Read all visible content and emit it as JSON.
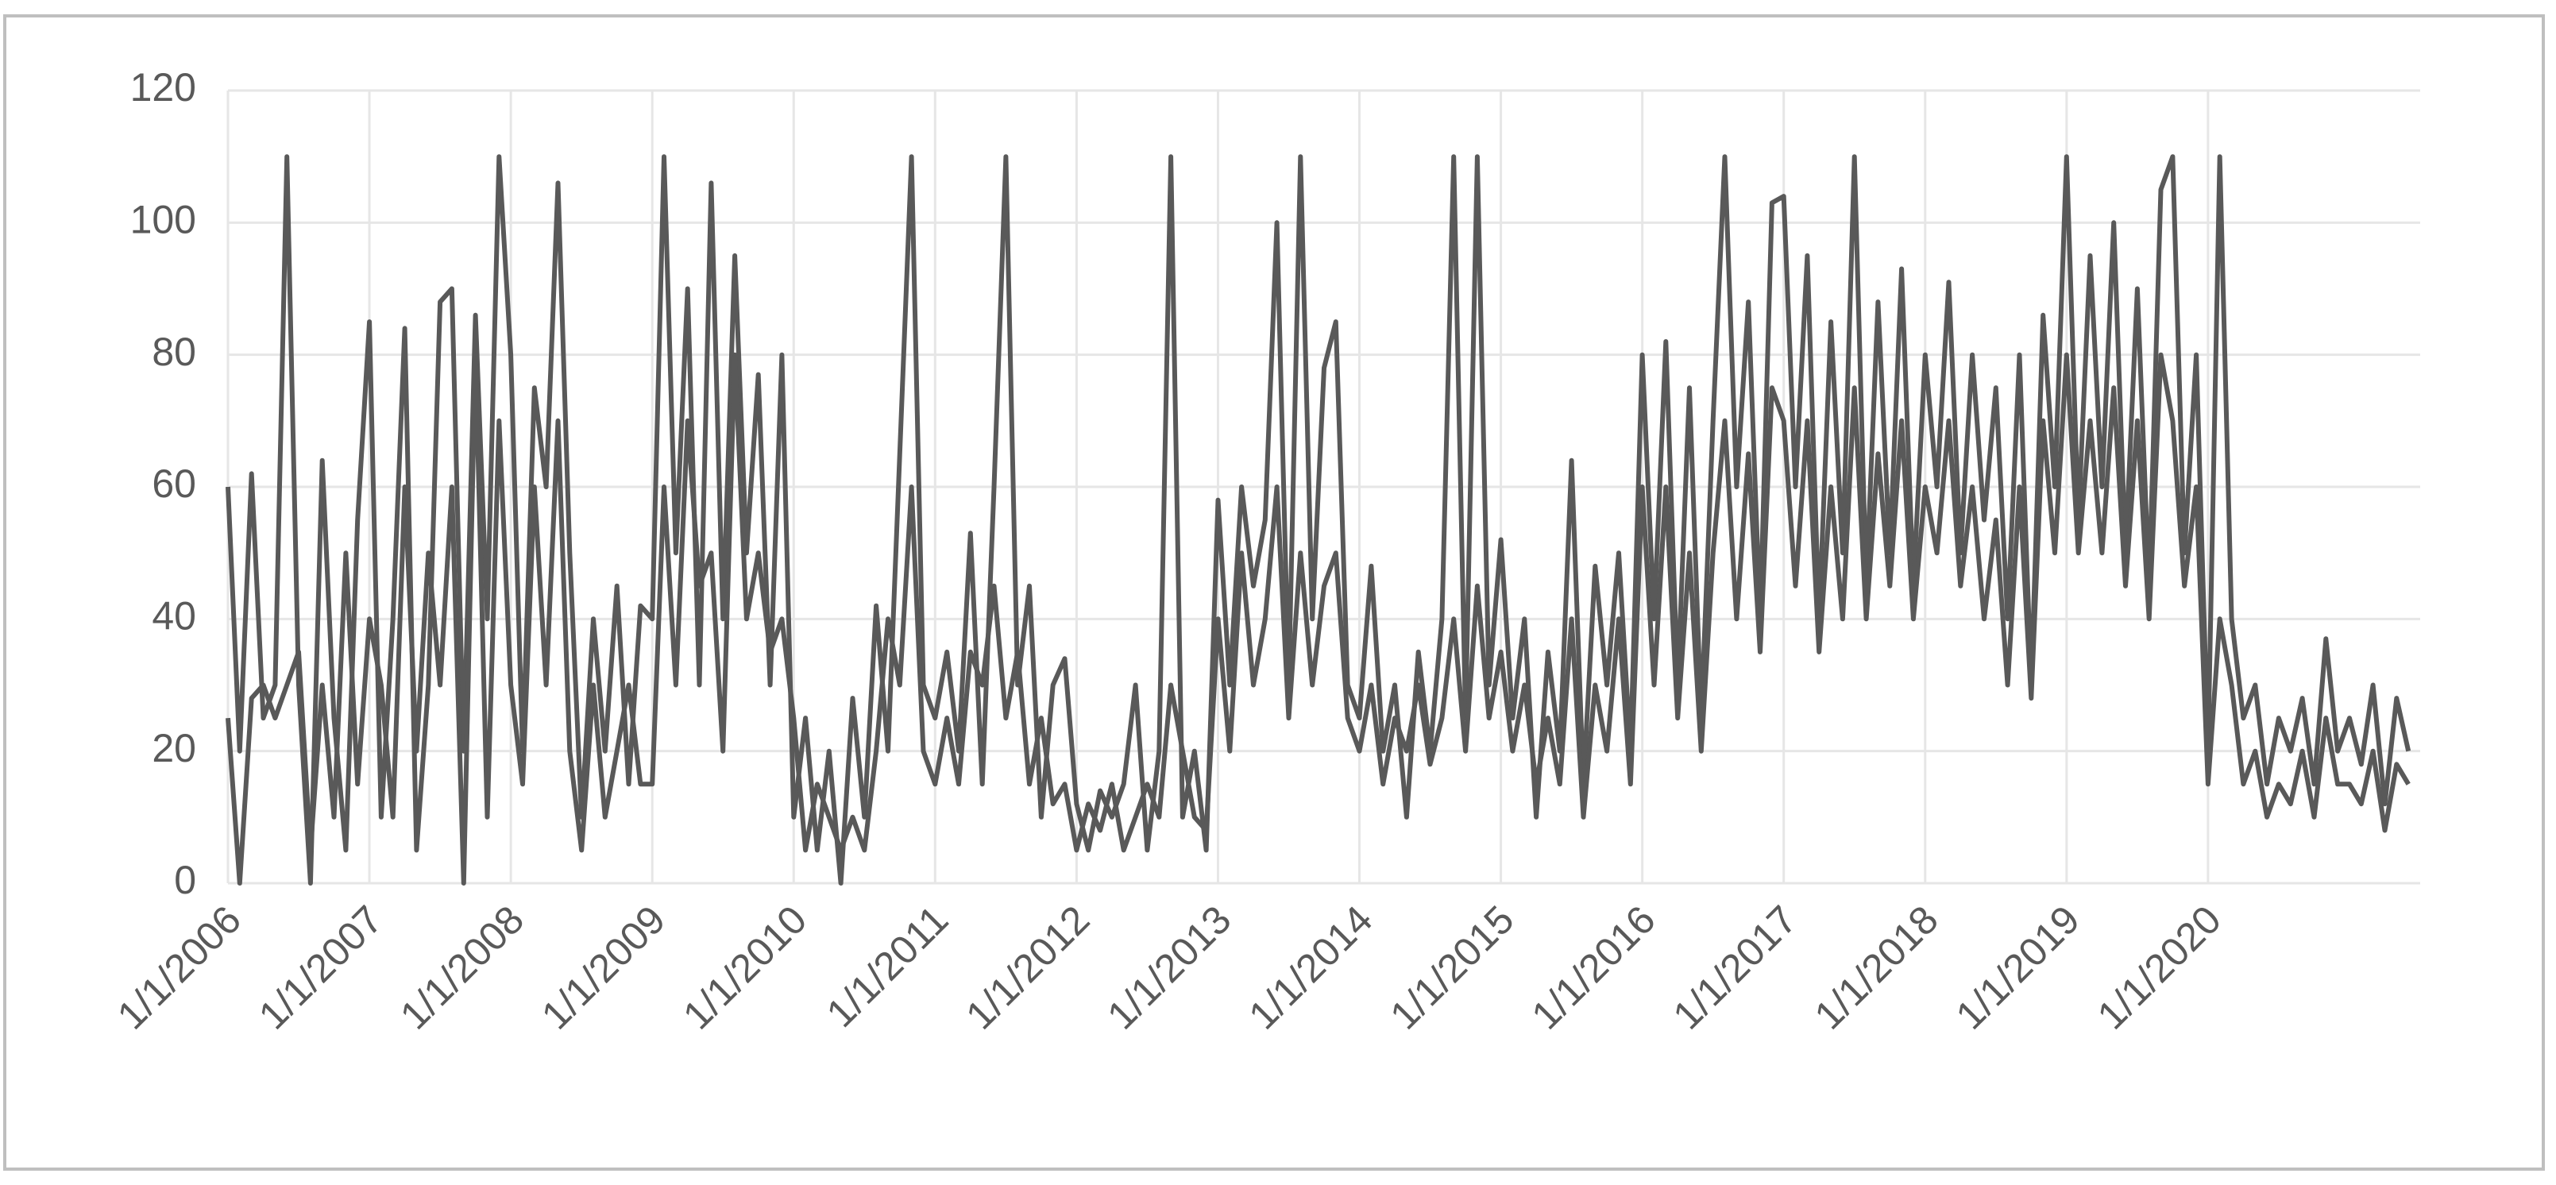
{
  "chart_data": {
    "type": "line",
    "categories": [
      "1/1/2006",
      null,
      null,
      null,
      null,
      null,
      null,
      null,
      null,
      null,
      null,
      null,
      "1/1/2007",
      null,
      null,
      null,
      null,
      null,
      null,
      null,
      null,
      null,
      null,
      null,
      "1/1/2008",
      null,
      null,
      null,
      null,
      null,
      null,
      null,
      null,
      null,
      null,
      null,
      "1/1/2009",
      null,
      null,
      null,
      null,
      null,
      null,
      null,
      null,
      null,
      null,
      null,
      "1/1/2010",
      null,
      null,
      null,
      null,
      null,
      null,
      null,
      null,
      null,
      null,
      null,
      "1/1/2011",
      null,
      null,
      null,
      null,
      null,
      null,
      null,
      null,
      null,
      null,
      null,
      "1/1/2012",
      null,
      null,
      null,
      null,
      null,
      null,
      null,
      null,
      null,
      null,
      null,
      "1/1/2013",
      null,
      null,
      null,
      null,
      null,
      null,
      null,
      null,
      null,
      null,
      null,
      "1/1/2014",
      null,
      null,
      null,
      null,
      null,
      null,
      null,
      null,
      null,
      null,
      null,
      "1/1/2015",
      null,
      null,
      null,
      null,
      null,
      null,
      null,
      null,
      null,
      null,
      null,
      "1/1/2016",
      null,
      null,
      null,
      null,
      null,
      null,
      null,
      null,
      null,
      null,
      null,
      "1/1/2017",
      null,
      null,
      null,
      null,
      null,
      null,
      null,
      null,
      null,
      null,
      null,
      "1/1/2018",
      null,
      null,
      null,
      null,
      null,
      null,
      null,
      null,
      null,
      null,
      null,
      "1/1/2019",
      null,
      null,
      null,
      null,
      null,
      null,
      null,
      null,
      null,
      null,
      null,
      "1/1/2020",
      null,
      null,
      null,
      null,
      null,
      null,
      null,
      null,
      null,
      null,
      null,
      null,
      null,
      null,
      null,
      null,
      null
    ],
    "series": [
      {
        "color": "#595959",
        "values": [
          60,
          20,
          62,
          25,
          30,
          110,
          30,
          0,
          64,
          25,
          5,
          55,
          85,
          10,
          40,
          84,
          5,
          30,
          88,
          90,
          20,
          86,
          40,
          110,
          80,
          20,
          75,
          60,
          106,
          50,
          10,
          40,
          20,
          45,
          15,
          42,
          40,
          110,
          50,
          90,
          30,
          106,
          40,
          95,
          50,
          77,
          30,
          80,
          10,
          25,
          5,
          20,
          0,
          28,
          10,
          42,
          20,
          65,
          110,
          30,
          25,
          35,
          20,
          53,
          15,
          60,
          110,
          30,
          45,
          10,
          30,
          34,
          12,
          5,
          14,
          10,
          15,
          30,
          5,
          20,
          110,
          10,
          20,
          5,
          58,
          30,
          60,
          45,
          55,
          100,
          30,
          110,
          40,
          78,
          85,
          30,
          25,
          48,
          20,
          30,
          10,
          35,
          20,
          40,
          110,
          25,
          110,
          30,
          52,
          25,
          40,
          10,
          35,
          20,
          64,
          15,
          48,
          30,
          50,
          20,
          80,
          40,
          82,
          30,
          75,
          25,
          70,
          110,
          60,
          88,
          40,
          103,
          104,
          60,
          95,
          40,
          85,
          50,
          110,
          45,
          88,
          50,
          93,
          45,
          80,
          60,
          91,
          50,
          80,
          55,
          75,
          40,
          80,
          30,
          86,
          60,
          110,
          55,
          95,
          60,
          100,
          50,
          90,
          45,
          105,
          110,
          50,
          80,
          20,
          110,
          40,
          25,
          30,
          15,
          25,
          20,
          28,
          15,
          37,
          20,
          25,
          18,
          30,
          12,
          28,
          20
        ]
      },
      {
        "color": "#595959",
        "values": [
          25,
          0,
          28,
          30,
          25,
          30,
          35,
          5,
          30,
          10,
          50,
          15,
          40,
          30,
          10,
          60,
          20,
          50,
          30,
          60,
          0,
          80,
          10,
          70,
          30,
          15,
          60,
          30,
          70,
          20,
          5,
          30,
          10,
          20,
          30,
          15,
          15,
          60,
          30,
          70,
          45,
          50,
          20,
          80,
          40,
          50,
          35,
          40,
          25,
          5,
          15,
          10,
          5,
          10,
          5,
          20,
          40,
          30,
          60,
          20,
          15,
          25,
          15,
          35,
          30,
          45,
          25,
          35,
          15,
          25,
          12,
          15,
          5,
          12,
          8,
          15,
          5,
          10,
          15,
          10,
          30,
          20,
          10,
          8,
          40,
          20,
          50,
          30,
          40,
          60,
          25,
          50,
          30,
          45,
          50,
          25,
          20,
          30,
          15,
          25,
          20,
          30,
          18,
          25,
          40,
          20,
          45,
          25,
          35,
          20,
          30,
          15,
          25,
          15,
          40,
          10,
          30,
          20,
          40,
          15,
          60,
          30,
          60,
          25,
          50,
          20,
          50,
          70,
          40,
          65,
          35,
          75,
          70,
          45,
          70,
          35,
          60,
          40,
          75,
          40,
          65,
          45,
          70,
          40,
          60,
          50,
          70,
          45,
          60,
          40,
          55,
          30,
          60,
          28,
          70,
          50,
          80,
          50,
          70,
          50,
          75,
          45,
          70,
          40,
          80,
          70,
          45,
          60,
          15,
          40,
          30,
          15,
          20,
          10,
          15,
          12,
          20,
          10,
          25,
          15,
          15,
          12,
          20,
          8,
          18,
          15
        ]
      }
    ],
    "ylim": [
      0,
      120
    ],
    "yticks": [
      0,
      20,
      40,
      60,
      80,
      100,
      120
    ],
    "grid": true
  }
}
